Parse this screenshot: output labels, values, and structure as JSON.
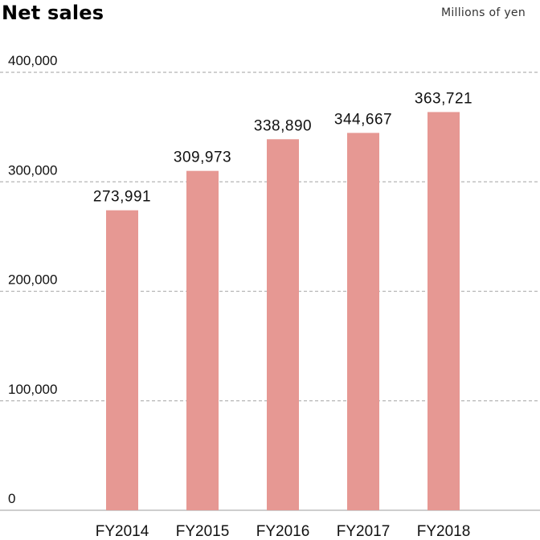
{
  "header": {
    "title": "Net sales",
    "unit": "Millions of yen"
  },
  "colors": {
    "bar": "#e69893",
    "grid": "#b5b5b5",
    "baseline": "#bdbdbd"
  },
  "chart_data": {
    "type": "bar",
    "title": "Net sales",
    "ylabel": "Millions of yen",
    "xlabel": "",
    "categories": [
      "FY2014",
      "FY2015",
      "FY2016",
      "FY2017",
      "FY2018"
    ],
    "values": [
      273991,
      309973,
      338890,
      344667,
      363721
    ],
    "value_labels": [
      "273,991",
      "309,973",
      "338,890",
      "344,667",
      "363,721"
    ],
    "ylim": [
      0,
      400000
    ],
    "yticks": [
      0,
      100000,
      200000,
      300000,
      400000
    ],
    "ytick_labels": [
      "0",
      "100,000",
      "200,000",
      "300,000",
      "400,000"
    ],
    "grid": true,
    "legend": "none"
  }
}
